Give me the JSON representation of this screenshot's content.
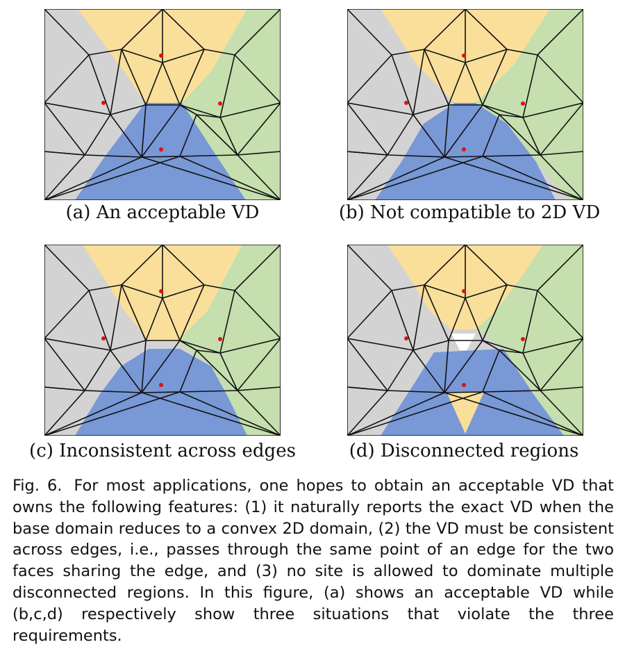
{
  "panels": [
    {
      "id": "a",
      "caption": "(a) An acceptable VD"
    },
    {
      "id": "b",
      "caption": "(b) Not compatible to 2D VD"
    },
    {
      "id": "c",
      "caption": "(c) Inconsistent across edges"
    },
    {
      "id": "d",
      "caption": "(d) Disconnected regions"
    }
  ],
  "colors": {
    "gray": "#d3d3d3",
    "yellow": "#fadf9a",
    "green": "#c5dfae",
    "blue": "#7898d6",
    "white": "#ffffff",
    "edge": "#111111",
    "site": "#e01010"
  },
  "figure_caption": {
    "label": "Fig. 6.",
    "text": "For most applications, one hopes to obtain an acceptable VD that owns the following features: (1) it naturally reports the exact VD when the base domain reduces to a convex 2D domain, (2) the VD must be consistent across edges, i.e., passes through the same point of an edge for the two faces sharing the edge, and (3) no site is allowed to dominate multiple disconnected regions. In this figure, (a) shows an acceptable VD while (b,c,d) respectively show three situations that violate the three requirements."
  }
}
